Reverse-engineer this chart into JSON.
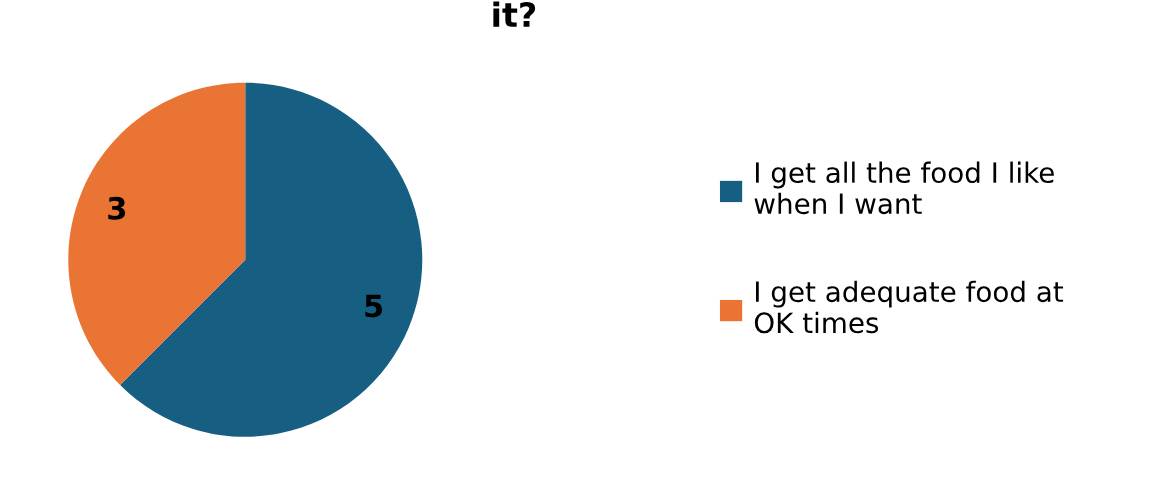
{
  "chart_data": {
    "type": "pie",
    "title": "it?",
    "categories": [
      "I get all the food I like when I want",
      "I get adequate food at OK times"
    ],
    "values": [
      5,
      3
    ],
    "colors": [
      "#175f82",
      "#e97433"
    ],
    "data_labels": true,
    "legend": "right"
  }
}
